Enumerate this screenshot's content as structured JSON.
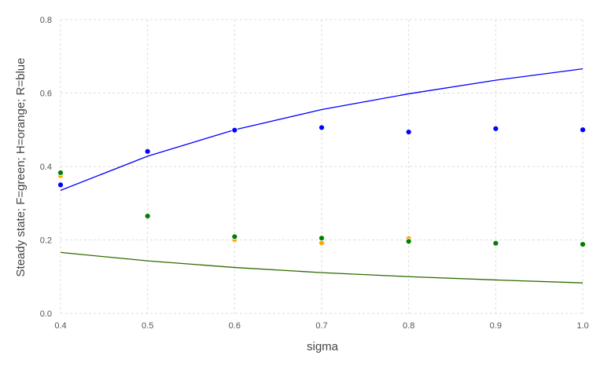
{
  "chart_data": {
    "type": "scatter",
    "xlabel": "sigma",
    "ylabel": "Steady state; F=green; H=orange; R=blue",
    "xlim": [
      0.4,
      1.0
    ],
    "ylim": [
      0.0,
      0.8
    ],
    "xticks": [
      "0.4",
      "0.5",
      "0.6",
      "0.7",
      "0.8",
      "0.9",
      "1.0"
    ],
    "yticks": [
      "0.0",
      "0.2",
      "0.4",
      "0.6",
      "0.8"
    ],
    "grid": true,
    "colors": {
      "R": "#0000ff",
      "F": "#008000",
      "H": "#ffa500",
      "F_line": "#2e6b00"
    },
    "series": [
      {
        "kind": "scatter",
        "color_key": "H",
        "x": [
          0.4,
          0.5,
          0.6,
          0.7,
          0.8,
          0.9,
          1.0
        ],
        "y": [
          0.375,
          0.262,
          0.201,
          0.192,
          0.204,
          0.19,
          0.186
        ]
      },
      {
        "kind": "scatter",
        "color_key": "F",
        "x": [
          0.4,
          0.5,
          0.6,
          0.7,
          0.8,
          0.9,
          1.0
        ],
        "y": [
          0.383,
          0.265,
          0.209,
          0.205,
          0.196,
          0.191,
          0.188
        ]
      },
      {
        "kind": "scatter",
        "color_key": "R",
        "x": [
          0.4,
          0.5,
          0.6,
          0.7,
          0.8,
          0.9,
          1.0
        ],
        "y": [
          0.35,
          0.441,
          0.499,
          0.506,
          0.494,
          0.503,
          0.5
        ]
      },
      {
        "kind": "line",
        "color_key": "R",
        "x": [
          0.4,
          0.5,
          0.6,
          0.7,
          0.8,
          0.9,
          1.0
        ],
        "y": [
          0.335,
          0.428,
          0.5,
          0.555,
          0.598,
          0.635,
          0.666
        ]
      },
      {
        "kind": "line",
        "color_key": "F_line",
        "x": [
          0.4,
          0.5,
          0.6,
          0.7,
          0.8,
          0.9,
          1.0
        ],
        "y": [
          0.166,
          0.143,
          0.125,
          0.111,
          0.1,
          0.091,
          0.083
        ]
      }
    ]
  }
}
